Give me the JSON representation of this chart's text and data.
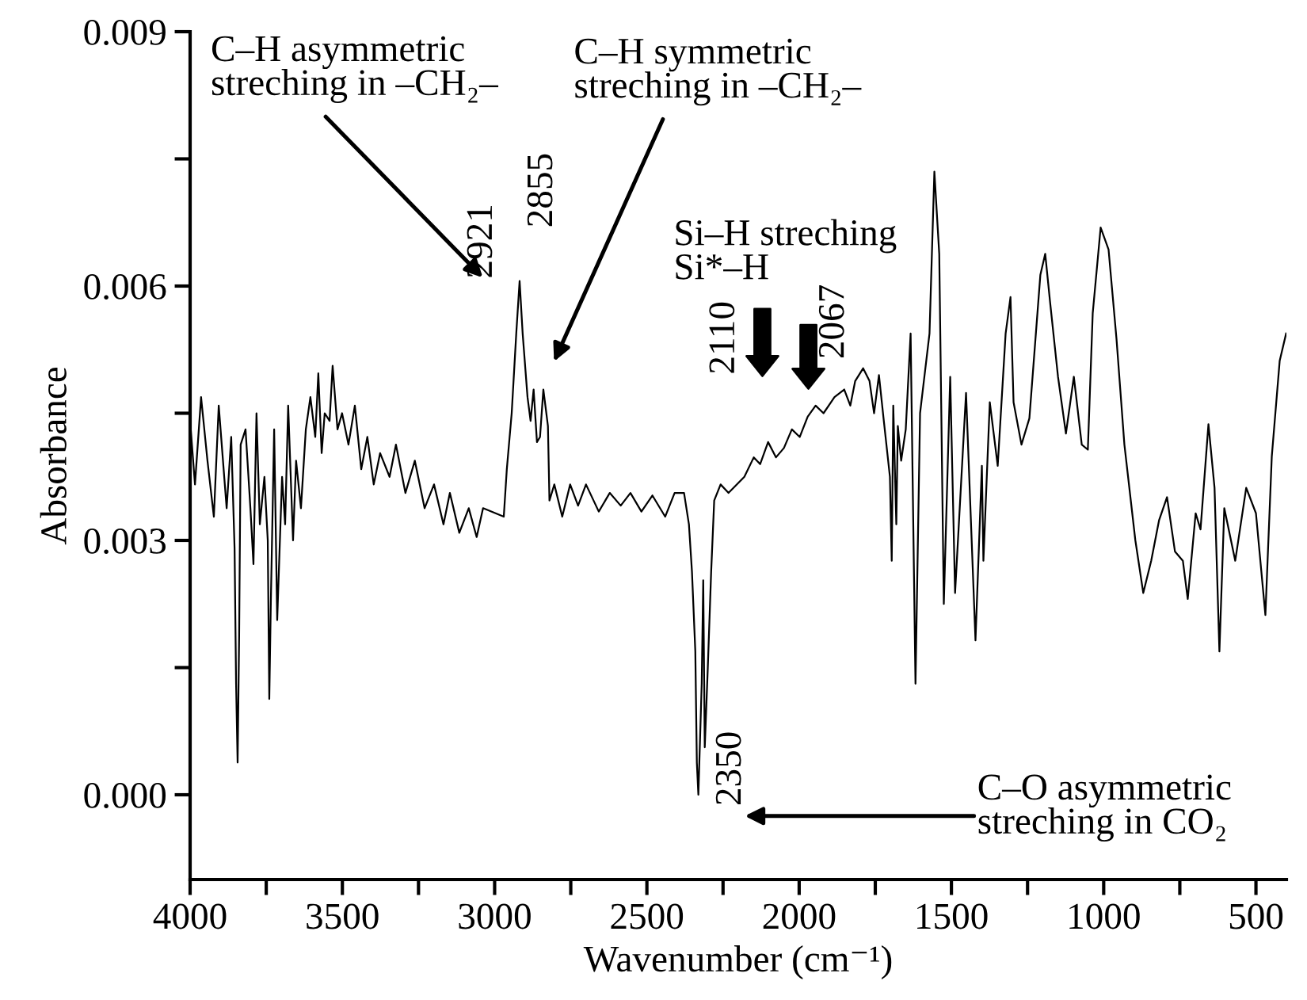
{
  "chart_data": {
    "type": "line",
    "xlabel": "Wavenumber (cm⁻¹)",
    "ylabel": "Absorbance",
    "xlim": [
      4000,
      400
    ],
    "ylim": [
      -0.001,
      0.009
    ],
    "xticks": [
      {
        "value": 4000,
        "label": "4000"
      },
      {
        "value": 3750,
        "label": null
      },
      {
        "value": 3500,
        "label": "3500"
      },
      {
        "value": 3250,
        "label": null
      },
      {
        "value": 3000,
        "label": "3000"
      },
      {
        "value": 2750,
        "label": null
      },
      {
        "value": 2500,
        "label": "2500"
      },
      {
        "value": 2250,
        "label": null
      },
      {
        "value": 2000,
        "label": "2000"
      },
      {
        "value": 1750,
        "label": null
      },
      {
        "value": 1500,
        "label": "1500"
      },
      {
        "value": 1250,
        "label": null
      },
      {
        "value": 1000,
        "label": "1000"
      },
      {
        "value": 750,
        "label": null
      },
      {
        "value": 500,
        "label": "500"
      }
    ],
    "yticks": [
      {
        "value": 0,
        "label": "0.000"
      },
      {
        "value": 0.0015,
        "label": null
      },
      {
        "value": 0.003,
        "label": "0.003"
      },
      {
        "value": 0.0045,
        "label": null
      },
      {
        "value": 0.006,
        "label": "0.006"
      },
      {
        "value": 0.0075,
        "label": null
      },
      {
        "value": 0.009,
        "label": "0.009"
      }
    ],
    "grid": false,
    "legend": false,
    "marker": "none",
    "line_style": "solid",
    "annotations": [
      "C–H asymmetric\nstreching in –CH₂–",
      "2921",
      "C–H symmetric\nstreching in –CH₂–",
      "2855",
      "Si–H streching\nSi*–H",
      "2110",
      "2067",
      "2350",
      "C–O asymmetric\nstreching in CO₂"
    ],
    "series": [
      {
        "color": "#000000",
        "x": [
          4000,
          3984,
          3964,
          3943,
          3922,
          3906,
          3880,
          3865,
          3854,
          3849,
          3844,
          3839,
          3834,
          3818,
          3802,
          3792,
          3782,
          3771,
          3756,
          3745,
          3740,
          3735,
          3724,
          3714,
          3698,
          3688,
          3678,
          3662,
          3652,
          3636,
          3620,
          3605,
          3589,
          3579,
          3568,
          3558,
          3542,
          3532,
          3516,
          3501,
          3480,
          3459,
          3438,
          3418,
          3397,
          3376,
          3345,
          3324,
          3293,
          3262,
          3230,
          3199,
          3168,
          3147,
          3116,
          3085,
          3059,
          3038,
          2970,
          2960,
          2944,
          2929,
          2918,
          2908,
          2892,
          2882,
          2872,
          2861,
          2851,
          2840,
          2825,
          2820,
          2804,
          2778,
          2752,
          2726,
          2700,
          2658,
          2622,
          2586,
          2554,
          2518,
          2482,
          2440,
          2409,
          2378,
          2362,
          2352,
          2341,
          2336,
          2331,
          2320,
          2315,
          2310,
          2300,
          2289,
          2279,
          2258,
          2232,
          2180,
          2149,
          2128,
          2102,
          2076,
          2050,
          2024,
          1998,
          1972,
          1946,
          1920,
          1884,
          1852,
          1832,
          1816,
          1790,
          1769,
          1754,
          1738,
          1722,
          1702,
          1696,
          1691,
          1681,
          1676,
          1665,
          1650,
          1634,
          1618,
          1603,
          1572,
          1556,
          1540,
          1525,
          1504,
          1488,
          1452,
          1421,
          1400,
          1395,
          1374,
          1348,
          1322,
          1306,
          1296,
          1270,
          1244,
          1208,
          1192,
          1176,
          1150,
          1124,
          1098,
          1072,
          1052,
          1036,
          1010,
          984,
          958,
          932,
          896,
          870,
          844,
          818,
          792,
          766,
          740,
          724,
          698,
          682,
          656,
          636,
          620,
          604,
          568,
          532,
          500,
          469,
          448,
          422,
          401
        ],
        "values": [
          0.00441,
          0.00366,
          0.00469,
          0.00394,
          0.00328,
          0.00459,
          0.00338,
          0.00422,
          0.00291,
          0.00131,
          0.00038,
          0.00188,
          0.00413,
          0.00431,
          0.00338,
          0.00272,
          0.0045,
          0.00319,
          0.00375,
          0.003,
          0.00113,
          0.00225,
          0.00431,
          0.00206,
          0.00375,
          0.00319,
          0.00459,
          0.003,
          0.00394,
          0.00338,
          0.00431,
          0.00469,
          0.00422,
          0.00497,
          0.00403,
          0.0045,
          0.00441,
          0.00506,
          0.00431,
          0.0045,
          0.00413,
          0.00459,
          0.00384,
          0.00422,
          0.00366,
          0.00403,
          0.00375,
          0.00413,
          0.00356,
          0.00394,
          0.00338,
          0.00366,
          0.00319,
          0.00356,
          0.00309,
          0.00338,
          0.00304,
          0.00338,
          0.00328,
          0.00384,
          0.0045,
          0.00544,
          0.00606,
          0.00544,
          0.00469,
          0.00441,
          0.00478,
          0.00416,
          0.00422,
          0.00478,
          0.00435,
          0.00347,
          0.00366,
          0.00328,
          0.00366,
          0.00341,
          0.00366,
          0.00334,
          0.00356,
          0.00341,
          0.00356,
          0.00334,
          0.00353,
          0.00328,
          0.00356,
          0.00356,
          0.00319,
          0.00263,
          0.00169,
          0.00038,
          0.0,
          0.00131,
          0.00253,
          0.00056,
          0.0015,
          0.00263,
          0.00347,
          0.00366,
          0.00356,
          0.00375,
          0.00398,
          0.0039,
          0.00416,
          0.00398,
          0.00409,
          0.00431,
          0.00422,
          0.00446,
          0.00459,
          0.0045,
          0.00469,
          0.00478,
          0.00459,
          0.00488,
          0.00503,
          0.00488,
          0.0045,
          0.00495,
          0.00441,
          0.00375,
          0.00276,
          0.00459,
          0.00319,
          0.00435,
          0.00394,
          0.00431,
          0.00544,
          0.00131,
          0.0045,
          0.00544,
          0.00735,
          0.00638,
          0.00225,
          0.00493,
          0.00238,
          0.00474,
          0.00182,
          0.00388,
          0.00276,
          0.00463,
          0.00388,
          0.00544,
          0.00587,
          0.00463,
          0.00413,
          0.00444,
          0.00613,
          0.00638,
          0.00581,
          0.00493,
          0.00426,
          0.00493,
          0.00413,
          0.00407,
          0.00568,
          0.00669,
          0.00643,
          0.00538,
          0.00413,
          0.003,
          0.00238,
          0.00276,
          0.00324,
          0.00351,
          0.00287,
          0.00276,
          0.00231,
          0.00332,
          0.00313,
          0.00437,
          0.00362,
          0.00169,
          0.00338,
          0.00276,
          0.00362,
          0.00332,
          0.00212,
          0.00399,
          0.00512,
          0.00544
        ]
      }
    ]
  }
}
